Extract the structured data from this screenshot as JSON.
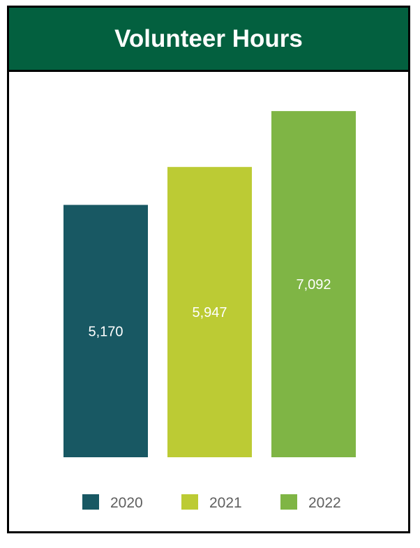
{
  "chart_data": {
    "type": "bar",
    "title": "Volunteer Hours",
    "categories": [
      "2020",
      "2021",
      "2022"
    ],
    "values": [
      5170,
      5947,
      7092
    ],
    "value_labels": [
      "5,170",
      "5,947",
      "7,092"
    ],
    "colors": [
      "#185863",
      "#bccb34",
      "#7fb545"
    ],
    "ylim": [
      0,
      7580
    ],
    "grid": false,
    "legend": "bottom"
  },
  "colors": {
    "header_bg": "#03603f",
    "label_text": "#ffffff",
    "legend_text": "#5f5f5f"
  }
}
